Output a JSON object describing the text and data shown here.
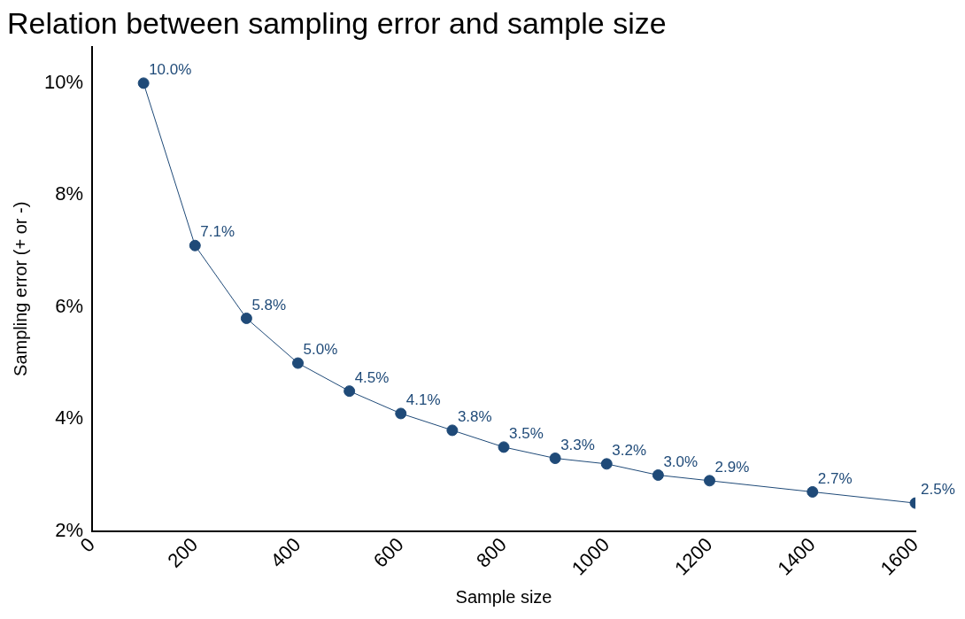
{
  "chart_data": {
    "type": "line",
    "title": "Relation between sampling error and sample size",
    "xlabel": "Sample size",
    "ylabel": "Sampling error (+ or -)",
    "x": [
      100,
      200,
      300,
      400,
      500,
      600,
      700,
      800,
      900,
      1000,
      1100,
      1200,
      1400,
      1600
    ],
    "series": [
      {
        "color": "#1f4a78",
        "values": [
          10.0,
          7.1,
          5.8,
          5.0,
          4.5,
          4.1,
          3.8,
          3.5,
          3.3,
          3.2,
          3.0,
          2.9,
          2.7,
          2.5
        ],
        "value_labels": [
          "10.0%",
          "7.1%",
          "5.8%",
          "5.0%",
          "4.5%",
          "4.1%",
          "3.8%",
          "3.5%",
          "3.3%",
          "3.2%",
          "3.0%",
          "2.9%",
          "2.7%",
          "2.5%"
        ]
      }
    ],
    "xlim": [
      0,
      1600
    ],
    "xticks": [
      0,
      200,
      400,
      600,
      800,
      1000,
      1200,
      1400,
      1600
    ],
    "ylim": [
      2,
      10.65
    ],
    "yticks": [
      {
        "value": 2,
        "label": "2%"
      },
      {
        "value": 4,
        "label": "4%"
      },
      {
        "value": 6,
        "label": "6%"
      },
      {
        "value": 8,
        "label": "8%"
      },
      {
        "value": 10,
        "label": "10%"
      }
    ],
    "grid": false,
    "legend": false,
    "marker": "circle",
    "line_style": "solid"
  }
}
